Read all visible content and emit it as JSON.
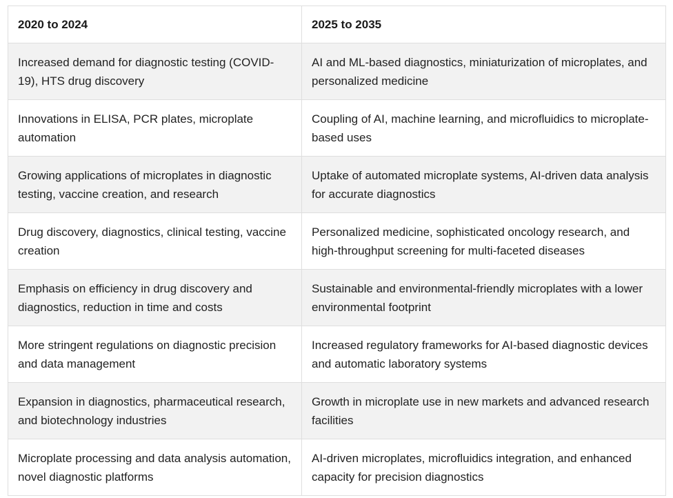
{
  "table": {
    "headers": [
      "2020 to 2024",
      "2025 to 2035"
    ],
    "rows": [
      [
        "Increased demand for diagnostic testing (COVID-19), HTS drug discovery",
        "AI and ML-based diagnostics, miniaturization of microplates, and personalized medicine"
      ],
      [
        "Innovations in ELISA, PCR plates, microplate automation",
        "Coupling of AI, machine learning, and microfluidics to microplate-based uses"
      ],
      [
        "Growing applications of microplates in diagnostic testing, vaccine creation, and research",
        "Uptake of automated microplate systems, AI-driven data analysis for accurate diagnostics"
      ],
      [
        "Drug discovery, diagnostics, clinical testing, vaccine creation",
        "Personalized medicine, sophisticated oncology research, and high-throughput screening for multi-faceted diseases"
      ],
      [
        "Emphasis on efficiency in drug discovery and diagnostics, reduction in time and costs",
        "Sustainable and environmental-friendly microplates with a lower environmental footprint"
      ],
      [
        "More stringent regulations on diagnostic precision and data management",
        "Increased regulatory frameworks for AI-based diagnostic devices and automatic laboratory systems"
      ],
      [
        "Expansion in diagnostics, pharmaceutical research, and biotechnology industries",
        "Growth in microplate use in new markets and advanced research facilities"
      ],
      [
        "Microplate processing and data analysis automation, novel diagnostic platforms",
        "AI-driven microplates, microfluidics integration, and enhanced capacity for precision diagnostics"
      ]
    ]
  }
}
